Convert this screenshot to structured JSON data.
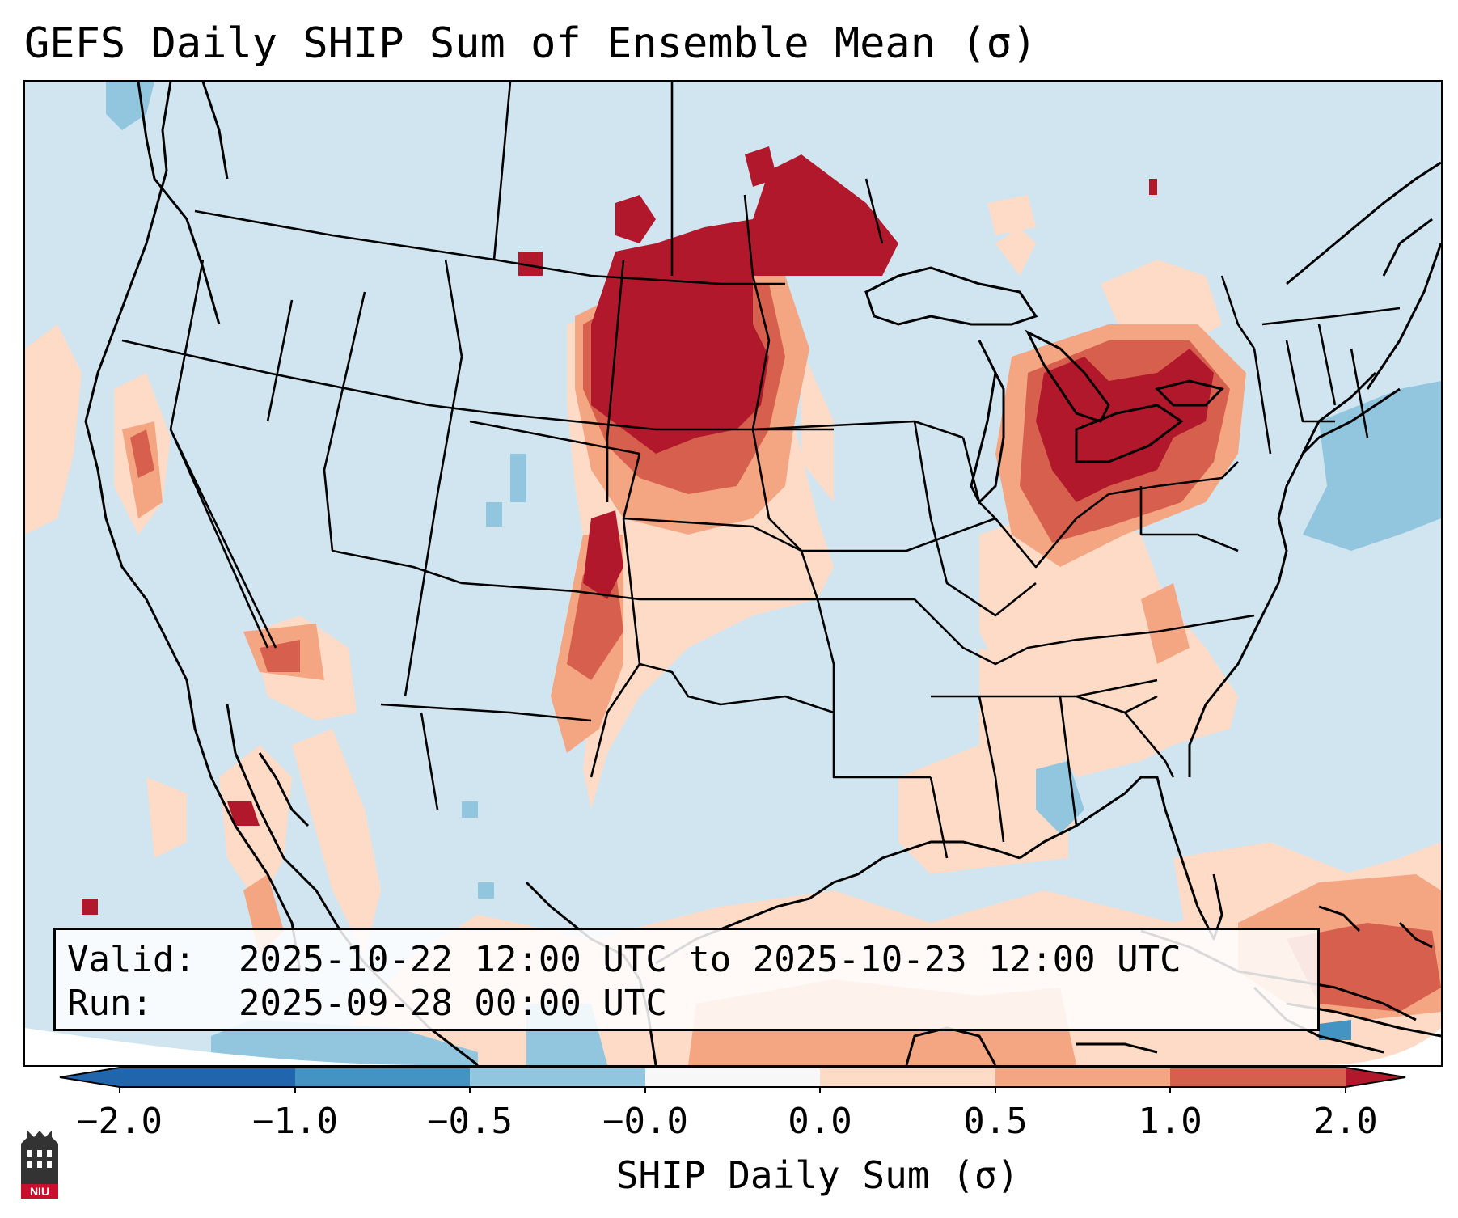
{
  "title": "GEFS Daily SHIP Sum of Ensemble Mean (σ)",
  "info": {
    "valid_label": "Valid:",
    "valid_value": "2025-10-22 12:00 UTC to 2025-10-23 12:00 UTC",
    "run_label": "Run:",
    "run_value": "2025-09-28 00:00 UTC"
  },
  "colorbar": {
    "label": "SHIP Daily Sum (σ)",
    "ticks": [
      "−2.0",
      "−1.0",
      "−0.5",
      "−0.0",
      "0.0",
      "0.5",
      "1.0",
      "2.0"
    ],
    "colors": [
      "#2166ac",
      "#4393c3",
      "#92c5de",
      "#d1e5f0",
      "#fddbc7",
      "#f4a582",
      "#d6604d",
      "#b2182b"
    ]
  },
  "logo": {
    "text": "NIU",
    "colors": {
      "body": "#333333",
      "badge": "#c8102e"
    }
  }
}
